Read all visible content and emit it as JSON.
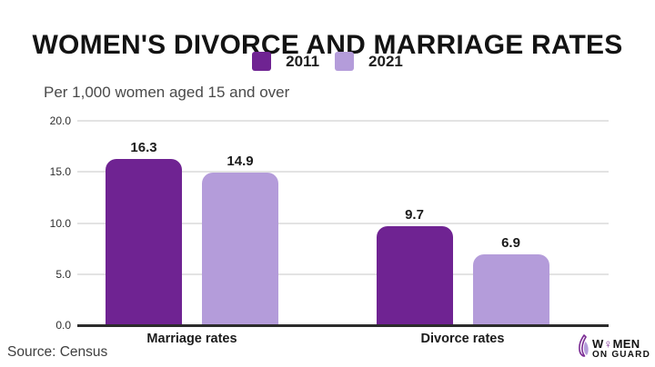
{
  "title": "WOMEN'S DIVORCE AND MARRIAGE RATES",
  "subtitle": "Per 1,000 women aged 15 and over",
  "source": "Source: Census",
  "colors": {
    "series_2011": "#6f2392",
    "series_2021": "#b49cda",
    "gridline": "#e3e3e3",
    "baseline": "#2c2c2c",
    "logo_accent": "#7b2d94"
  },
  "y_axis": {
    "ticks": [
      "20.0",
      "15.0",
      "10.0",
      "5.0",
      "0.0"
    ]
  },
  "chart_data": {
    "type": "bar",
    "categories": [
      "Marriage rates",
      "Divorce rates"
    ],
    "series": [
      {
        "name": "2011",
        "color": "#6f2392",
        "values": [
          16.3,
          9.7
        ]
      },
      {
        "name": "2021",
        "color": "#b49cda",
        "values": [
          14.9,
          6.9
        ]
      }
    ],
    "title": "WOMEN'S DIVORCE AND MARRIAGE RATES",
    "subtitle": "Per 1,000 women aged 15 and over",
    "xlabel": "",
    "ylabel": "Per 1,000 women aged 15 and over",
    "ylim": [
      0,
      20
    ],
    "ytick_step": 5,
    "grid": true,
    "legend_position": "top",
    "value_labels": true
  },
  "logo": {
    "line1_pre": "W",
    "line1_symbol": "♀",
    "line1_post": "MEN",
    "line2": "ON GUARD"
  }
}
